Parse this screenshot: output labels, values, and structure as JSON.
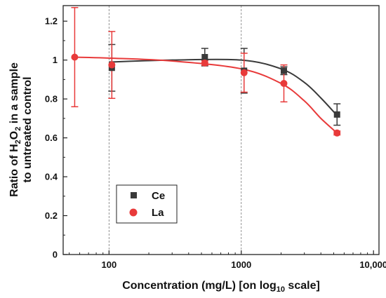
{
  "chart_data": {
    "type": "scatter",
    "xlabel": "Concentration (mg/L) [on log10 scale]",
    "xlabel_parts": {
      "pre": "Concentration (mg/L) [on log",
      "sub": "10",
      "post": " scale]"
    },
    "ylabel_line1_parts": {
      "pre": "Ratio of H",
      "sub1": "2",
      "mid": "O",
      "sub2": "2",
      "post": " in a sample"
    },
    "ylabel_line2": "to untreated control",
    "x_scale": "log",
    "xlim": [
      45,
      11000
    ],
    "ylim": [
      0,
      1.28
    ],
    "x_ticks": [
      100,
      1000,
      10000
    ],
    "x_tick_labels": [
      "100",
      "1000",
      "10,000"
    ],
    "y_ticks": [
      0,
      0.2,
      0.4,
      0.6,
      0.8,
      1.0,
      1.2
    ],
    "y_tick_labels": [
      "0",
      "0.2",
      "0.4",
      "0.6",
      "0.8",
      "1",
      "1.2"
    ],
    "grid": "vertical dashed at x-ticks",
    "legend_position": "bottom-left",
    "series": [
      {
        "name": "Ce",
        "marker": "square",
        "color": "#3a3a3a",
        "x": [
          105,
          530,
          1050,
          2100,
          5300
        ],
        "y": [
          0.96,
          1.015,
          0.945,
          0.945,
          0.72
        ],
        "yerr": [
          0.12,
          0.045,
          0.115,
          0.02,
          0.055
        ],
        "fit": {
          "x": [
            100,
            300,
            1000,
            2000,
            3000,
            4000,
            5300
          ],
          "y": [
            0.99,
            1.0,
            1.0,
            0.955,
            0.885,
            0.805,
            0.715
          ]
        }
      },
      {
        "name": "La",
        "marker": "circle",
        "color": "#e83a3a",
        "x": [
          55,
          105,
          530,
          1050,
          2100,
          5300
        ],
        "y": [
          1.015,
          0.975,
          0.985,
          0.935,
          0.88,
          0.625
        ],
        "yerr": [
          0.255,
          0.172,
          0.012,
          0.1,
          0.095,
          0.01
        ],
        "fit": {
          "x": [
            55,
            100,
            300,
            1000,
            2000,
            3000,
            4000,
            5300
          ],
          "y": [
            1.015,
            1.01,
            0.995,
            0.955,
            0.88,
            0.79,
            0.7,
            0.625
          ]
        }
      }
    ]
  }
}
